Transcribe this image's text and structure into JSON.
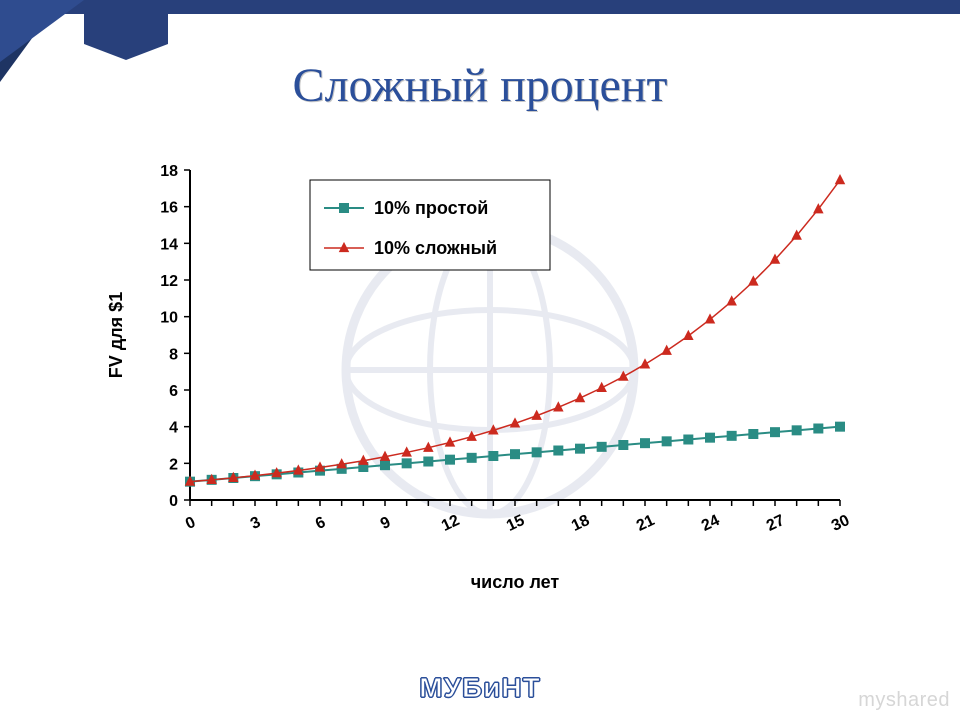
{
  "slide": {
    "title": "Сложный процент"
  },
  "logo": {
    "text": "МУБиНТ"
  },
  "watermark": {
    "text": "myshared"
  },
  "chart": {
    "type": "line",
    "xlabel": "число лет",
    "ylabel": "FV для $1",
    "label_fontsize": 18,
    "label_fontweight": "700",
    "tick_fontsize": 16,
    "background_color": "#ffffff",
    "axis_color": "#000000",
    "tick_color": "#000000",
    "xlim": [
      0,
      30
    ],
    "ylim": [
      0,
      18
    ],
    "xtick_step": 3,
    "ytick_step": 2,
    "xticks": [
      0,
      3,
      6,
      9,
      12,
      15,
      18,
      21,
      24,
      27,
      30
    ],
    "yticks": [
      0,
      2,
      4,
      6,
      8,
      10,
      12,
      14,
      16,
      18
    ],
    "xtick_rotate_deg": -25,
    "legend": {
      "position": "top-inside",
      "border_color": "#000000",
      "bg_color": "#ffffff",
      "fontsize": 18,
      "fontweight": "700"
    },
    "series": [
      {
        "name": "10% простой",
        "color": "#2a8c84",
        "line_width": 2,
        "marker": "square",
        "marker_size": 9,
        "x": [
          0,
          1,
          2,
          3,
          4,
          5,
          6,
          7,
          8,
          9,
          10,
          11,
          12,
          13,
          14,
          15,
          16,
          17,
          18,
          19,
          20,
          21,
          22,
          23,
          24,
          25,
          26,
          27,
          28,
          29,
          30
        ],
        "y": [
          1.0,
          1.1,
          1.2,
          1.3,
          1.4,
          1.5,
          1.6,
          1.7,
          1.8,
          1.9,
          2.0,
          2.1,
          2.2,
          2.3,
          2.4,
          2.5,
          2.6,
          2.7,
          2.8,
          2.9,
          3.0,
          3.1,
          3.2,
          3.3,
          3.4,
          3.5,
          3.6,
          3.7,
          3.8,
          3.9,
          4.0
        ]
      },
      {
        "name": "10% сложный",
        "color": "#cc2a1f",
        "line_width": 1.5,
        "marker": "triangle",
        "marker_size": 8,
        "x": [
          0,
          1,
          2,
          3,
          4,
          5,
          6,
          7,
          8,
          9,
          10,
          11,
          12,
          13,
          14,
          15,
          16,
          17,
          18,
          19,
          20,
          21,
          22,
          23,
          24,
          25,
          26,
          27,
          28,
          29,
          30
        ],
        "y": [
          1.0,
          1.1,
          1.21,
          1.331,
          1.4641,
          1.6105,
          1.7716,
          1.9487,
          2.1436,
          2.3579,
          2.5937,
          2.8531,
          3.1384,
          3.4523,
          3.7975,
          4.1772,
          4.595,
          5.0545,
          5.5599,
          6.1159,
          6.7275,
          7.4003,
          8.1403,
          8.9543,
          9.8497,
          10.8347,
          11.9182,
          13.11,
          14.421,
          15.8631,
          17.4494
        ]
      }
    ]
  }
}
